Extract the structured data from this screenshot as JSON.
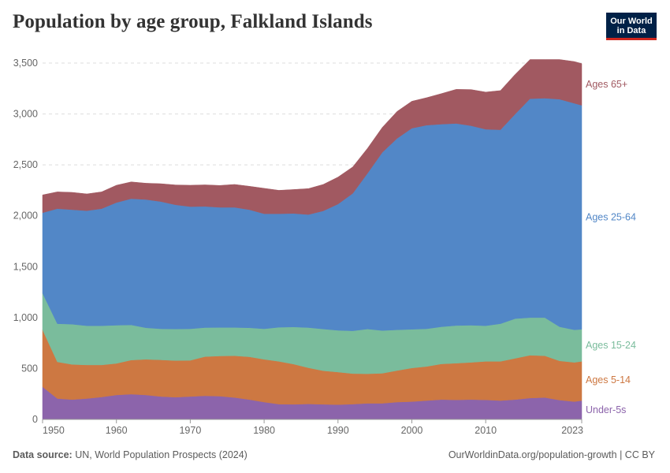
{
  "title": "Population by age group, Falkland Islands",
  "logo": {
    "line1": "Our World",
    "line2": "in Data",
    "bg": "#002147",
    "accent": "#ce261e"
  },
  "footer": {
    "source_label": "Data source:",
    "source_text": "UN, World Population Prospects (2024)",
    "credit": "OurWorldinData.org/population-growth | CC BY"
  },
  "chart_data": {
    "type": "area",
    "stacked": true,
    "title": "Population by age group, Falkland Islands",
    "xlabel": "",
    "ylabel": "",
    "xlim": [
      1950,
      2023
    ],
    "ylim": [
      0,
      3500
    ],
    "yticks": [
      0,
      500,
      1000,
      1500,
      2000,
      2500,
      3000,
      3500
    ],
    "ytick_labels": [
      "0",
      "500",
      "1,000",
      "1,500",
      "2,000",
      "2,500",
      "3,000",
      "3,500"
    ],
    "xticks": [
      1950,
      1960,
      1970,
      1980,
      1990,
      2000,
      2010,
      2023
    ],
    "xtick_labels": [
      "1950",
      "1960",
      "1970",
      "1980",
      "1990",
      "2000",
      "2010",
      "2023"
    ],
    "grid": "horizontal dashed",
    "legend_position": "right (labels at series ends)",
    "x": [
      1950,
      1952,
      1954,
      1956,
      1958,
      1960,
      1962,
      1964,
      1966,
      1968,
      1970,
      1972,
      1974,
      1976,
      1978,
      1980,
      1982,
      1984,
      1986,
      1988,
      1990,
      1992,
      1994,
      1996,
      1998,
      2000,
      2002,
      2004,
      2006,
      2008,
      2010,
      2012,
      2014,
      2016,
      2018,
      2020,
      2022,
      2023
    ],
    "series": [
      {
        "name": "Under-5s",
        "color": "#8c64ab",
        "values": [
          320,
          205,
          195,
          205,
          220,
          240,
          248,
          240,
          225,
          218,
          225,
          232,
          228,
          215,
          195,
          170,
          150,
          148,
          152,
          148,
          145,
          150,
          158,
          158,
          170,
          175,
          185,
          195,
          192,
          195,
          192,
          185,
          195,
          210,
          215,
          190,
          175,
          185
        ]
      },
      {
        "name": "Ages 5-14",
        "color": "#cd7842",
        "values": [
          560,
          360,
          345,
          330,
          315,
          310,
          335,
          350,
          360,
          360,
          355,
          385,
          395,
          410,
          420,
          420,
          420,
          395,
          355,
          330,
          320,
          300,
          290,
          295,
          310,
          330,
          335,
          350,
          360,
          365,
          378,
          385,
          405,
          420,
          410,
          385,
          385,
          385
        ]
      },
      {
        "name": "Ages 15-24",
        "color": "#7abc9c",
        "values": [
          360,
          375,
          395,
          385,
          385,
          375,
          345,
          310,
          305,
          310,
          310,
          285,
          280,
          278,
          285,
          300,
          335,
          365,
          395,
          410,
          410,
          420,
          440,
          420,
          400,
          380,
          370,
          365,
          370,
          365,
          350,
          370,
          390,
          370,
          375,
          335,
          320,
          315
        ]
      },
      {
        "name": "Ages 25-64",
        "color": "#5287c7",
        "values": [
          790,
          1130,
          1125,
          1130,
          1150,
          1205,
          1240,
          1260,
          1250,
          1220,
          1200,
          1190,
          1180,
          1180,
          1160,
          1130,
          1115,
          1115,
          1110,
          1160,
          1240,
          1350,
          1530,
          1750,
          1880,
          1975,
          2000,
          1990,
          1985,
          1960,
          1930,
          1905,
          2010,
          2150,
          2155,
          2235,
          2225,
          2200
        ]
      },
      {
        "name": "Ages 65+",
        "color": "#a15961",
        "values": [
          175,
          165,
          170,
          165,
          165,
          170,
          165,
          160,
          175,
          195,
          210,
          212,
          215,
          225,
          230,
          250,
          230,
          235,
          255,
          260,
          265,
          260,
          245,
          245,
          265,
          265,
          270,
          300,
          335,
          355,
          365,
          385,
          390,
          385,
          380,
          390,
          410,
          410
        ]
      }
    ]
  }
}
